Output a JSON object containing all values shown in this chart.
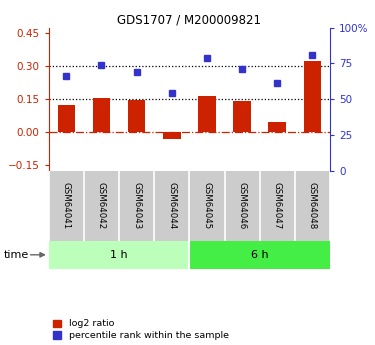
{
  "title": "GDS1707 / M200009821",
  "samples": [
    "GSM64041",
    "GSM64042",
    "GSM64043",
    "GSM64044",
    "GSM64045",
    "GSM64046",
    "GSM64047",
    "GSM64048"
  ],
  "log2_ratio": [
    0.125,
    0.155,
    0.148,
    -0.03,
    0.165,
    0.143,
    0.045,
    0.325
  ],
  "percentile_rank_pct": [
    66,
    74,
    69,
    54,
    79,
    71,
    61,
    81
  ],
  "groups": [
    {
      "label": "1 h",
      "start": 0,
      "end": 4,
      "color": "#bbffbb"
    },
    {
      "label": "6 h",
      "start": 4,
      "end": 8,
      "color": "#44ee44"
    }
  ],
  "ylim_left": [
    -0.175,
    0.475
  ],
  "ylim_right": [
    0,
    100
  ],
  "yticks_left": [
    -0.15,
    0,
    0.15,
    0.3,
    0.45
  ],
  "yticks_right": [
    0,
    25,
    50,
    75,
    100
  ],
  "hlines": [
    0.15,
    0.3
  ],
  "bar_color": "#cc2200",
  "dot_color": "#3333cc",
  "zero_line_color": "#cc2200",
  "legend_bar_label": "log2 ratio",
  "legend_dot_label": "percentile rank within the sample",
  "time_label": "time",
  "label_bg": "#cccccc",
  "label_sep_color": "#ffffff"
}
